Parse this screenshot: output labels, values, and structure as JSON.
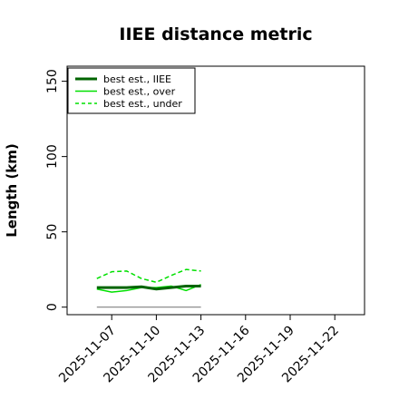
{
  "chart_data": {
    "type": "line",
    "title": "IIEE distance metric",
    "xlabel": "",
    "ylabel": "Length (km)",
    "ylim": [
      -5,
      160
    ],
    "xlim": [
      "2025-11-04",
      "2025-11-24"
    ],
    "y_ticks": [
      0,
      50,
      100,
      150
    ],
    "x_ticks": [
      "2025-11-07",
      "2025-11-10",
      "2025-11-13",
      "2025-11-16",
      "2025-11-19",
      "2025-11-22"
    ],
    "grid": false,
    "legend_position": "top-left",
    "series": [
      {
        "name": "best est., IIEE",
        "color": "#006400",
        "style": "solid-thick",
        "x": [
          "2025-11-06",
          "2025-11-07",
          "2025-11-08",
          "2025-11-09",
          "2025-11-10",
          "2025-11-11",
          "2025-11-12",
          "2025-11-13"
        ],
        "y": [
          13,
          13,
          13,
          13.5,
          12,
          13,
          14,
          14
        ]
      },
      {
        "name": "best est., over",
        "color": "#00e000",
        "style": "solid",
        "x": [
          "2025-11-06",
          "2025-11-07",
          "2025-11-08",
          "2025-11-09",
          "2025-11-10",
          "2025-11-11",
          "2025-11-12",
          "2025-11-13"
        ],
        "y": [
          12,
          10,
          11,
          13,
          13,
          14,
          11,
          15
        ]
      },
      {
        "name": "best est., under",
        "color": "#00e000",
        "style": "dashed",
        "x": [
          "2025-11-06",
          "2025-11-07",
          "2025-11-08",
          "2025-11-09",
          "2025-11-10",
          "2025-11-11",
          "2025-11-12",
          "2025-11-13"
        ],
        "y": [
          19,
          23.5,
          24,
          19,
          16.5,
          21,
          25,
          24
        ]
      }
    ],
    "reference_line": {
      "color": "#808080",
      "x": [
        "2025-11-06",
        "2025-11-13"
      ],
      "y": [
        0,
        0
      ]
    }
  }
}
